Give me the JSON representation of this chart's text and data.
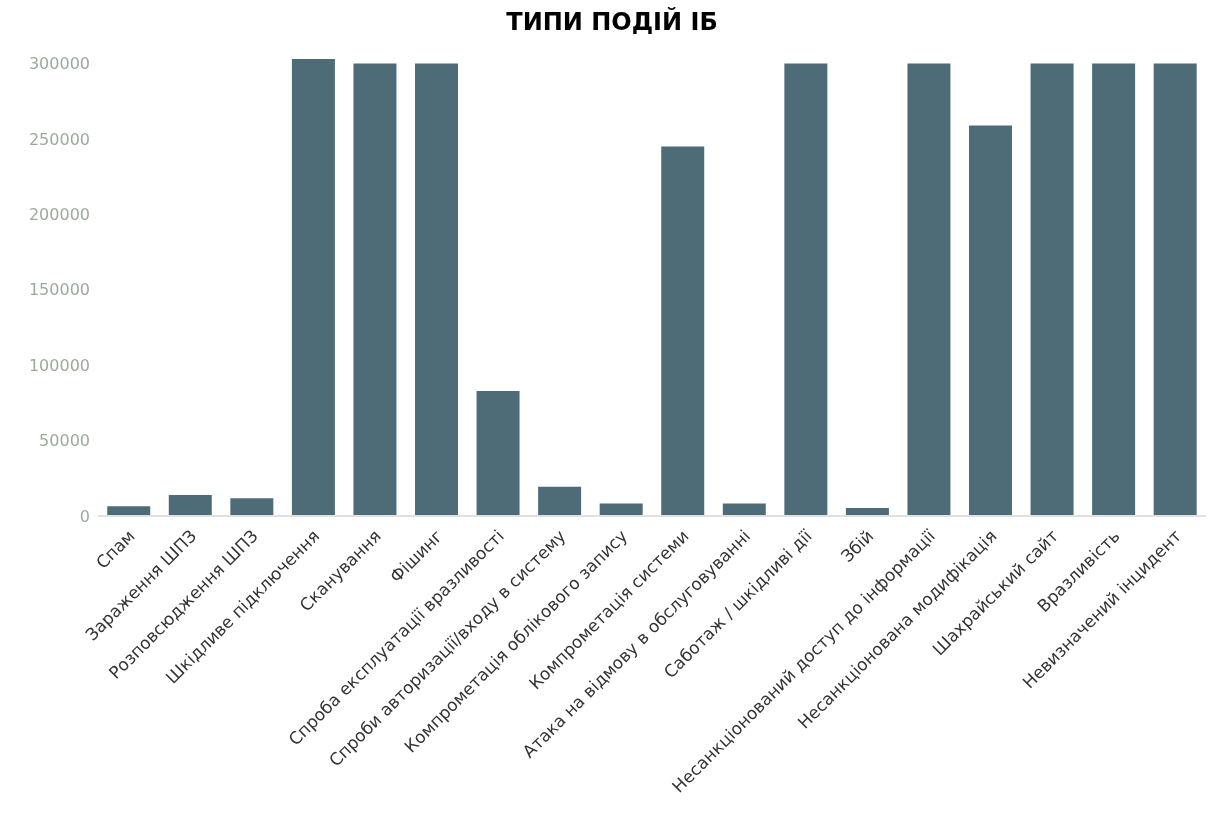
{
  "chart_data": {
    "type": "bar",
    "title": "ТИПИ ПОДІЙ ІБ",
    "categories": [
      "Спам",
      "Зараження ШПЗ",
      "Розповсюдження ШПЗ",
      "Шкідливе підключення",
      "Сканування",
      "Фішинг",
      "Спроба експлуатації вразливості",
      "Спроби авторизації/входу в систему",
      "Компрометація облікового запису",
      "Компрометація системи",
      "Атака на відмову в обслуговуванні",
      "Саботаж / шкідливі дії",
      "Збій",
      "Несанкціонований доступ до інформації",
      "Несанкціонована модифікація",
      "Шахрайський сайт",
      "Вразливість",
      "Невизначений інцидент"
    ],
    "values": [
      6400,
      13900,
      11700,
      303000,
      300000,
      300000,
      82800,
      19400,
      8300,
      245000,
      8300,
      300000,
      5300,
      300000,
      259000,
      300000,
      300000,
      300000
    ],
    "color": "#4e6b78",
    "ylim": [
      0,
      305000
    ],
    "yticks": [
      0,
      50000,
      100000,
      150000,
      200000,
      250000,
      300000
    ],
    "grid": false,
    "legend": false
  }
}
